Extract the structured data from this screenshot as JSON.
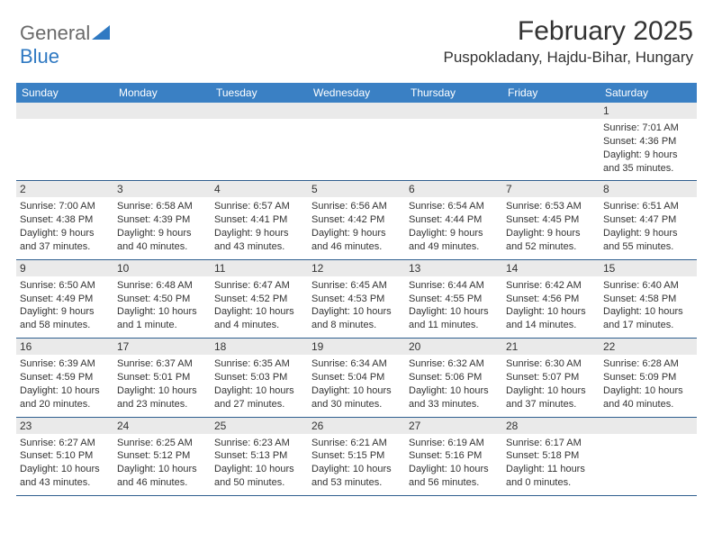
{
  "logo": {
    "part1": "General",
    "part2": "Blue"
  },
  "title": "February 2025",
  "location": "Puspokladany, Hajdu-Bihar, Hungary",
  "weekdays": [
    "Sunday",
    "Monday",
    "Tuesday",
    "Wednesday",
    "Thursday",
    "Friday",
    "Saturday"
  ],
  "colors": {
    "headerBar": "#3a80c4",
    "dayBar": "#eaeaea",
    "rowBorder": "#2f5f8f",
    "logoGray": "#6a6a6a",
    "logoBlue": "#2f79c2"
  },
  "weeks": [
    [
      null,
      null,
      null,
      null,
      null,
      null,
      {
        "n": "1",
        "sunrise": "7:01 AM",
        "sunset": "4:36 PM",
        "daylight": "9 hours and 35 minutes."
      }
    ],
    [
      {
        "n": "2",
        "sunrise": "7:00 AM",
        "sunset": "4:38 PM",
        "daylight": "9 hours and 37 minutes."
      },
      {
        "n": "3",
        "sunrise": "6:58 AM",
        "sunset": "4:39 PM",
        "daylight": "9 hours and 40 minutes."
      },
      {
        "n": "4",
        "sunrise": "6:57 AM",
        "sunset": "4:41 PM",
        "daylight": "9 hours and 43 minutes."
      },
      {
        "n": "5",
        "sunrise": "6:56 AM",
        "sunset": "4:42 PM",
        "daylight": "9 hours and 46 minutes."
      },
      {
        "n": "6",
        "sunrise": "6:54 AM",
        "sunset": "4:44 PM",
        "daylight": "9 hours and 49 minutes."
      },
      {
        "n": "7",
        "sunrise": "6:53 AM",
        "sunset": "4:45 PM",
        "daylight": "9 hours and 52 minutes."
      },
      {
        "n": "8",
        "sunrise": "6:51 AM",
        "sunset": "4:47 PM",
        "daylight": "9 hours and 55 minutes."
      }
    ],
    [
      {
        "n": "9",
        "sunrise": "6:50 AM",
        "sunset": "4:49 PM",
        "daylight": "9 hours and 58 minutes."
      },
      {
        "n": "10",
        "sunrise": "6:48 AM",
        "sunset": "4:50 PM",
        "daylight": "10 hours and 1 minute."
      },
      {
        "n": "11",
        "sunrise": "6:47 AM",
        "sunset": "4:52 PM",
        "daylight": "10 hours and 4 minutes."
      },
      {
        "n": "12",
        "sunrise": "6:45 AM",
        "sunset": "4:53 PM",
        "daylight": "10 hours and 8 minutes."
      },
      {
        "n": "13",
        "sunrise": "6:44 AM",
        "sunset": "4:55 PM",
        "daylight": "10 hours and 11 minutes."
      },
      {
        "n": "14",
        "sunrise": "6:42 AM",
        "sunset": "4:56 PM",
        "daylight": "10 hours and 14 minutes."
      },
      {
        "n": "15",
        "sunrise": "6:40 AM",
        "sunset": "4:58 PM",
        "daylight": "10 hours and 17 minutes."
      }
    ],
    [
      {
        "n": "16",
        "sunrise": "6:39 AM",
        "sunset": "4:59 PM",
        "daylight": "10 hours and 20 minutes."
      },
      {
        "n": "17",
        "sunrise": "6:37 AM",
        "sunset": "5:01 PM",
        "daylight": "10 hours and 23 minutes."
      },
      {
        "n": "18",
        "sunrise": "6:35 AM",
        "sunset": "5:03 PM",
        "daylight": "10 hours and 27 minutes."
      },
      {
        "n": "19",
        "sunrise": "6:34 AM",
        "sunset": "5:04 PM",
        "daylight": "10 hours and 30 minutes."
      },
      {
        "n": "20",
        "sunrise": "6:32 AM",
        "sunset": "5:06 PM",
        "daylight": "10 hours and 33 minutes."
      },
      {
        "n": "21",
        "sunrise": "6:30 AM",
        "sunset": "5:07 PM",
        "daylight": "10 hours and 37 minutes."
      },
      {
        "n": "22",
        "sunrise": "6:28 AM",
        "sunset": "5:09 PM",
        "daylight": "10 hours and 40 minutes."
      }
    ],
    [
      {
        "n": "23",
        "sunrise": "6:27 AM",
        "sunset": "5:10 PM",
        "daylight": "10 hours and 43 minutes."
      },
      {
        "n": "24",
        "sunrise": "6:25 AM",
        "sunset": "5:12 PM",
        "daylight": "10 hours and 46 minutes."
      },
      {
        "n": "25",
        "sunrise": "6:23 AM",
        "sunset": "5:13 PM",
        "daylight": "10 hours and 50 minutes."
      },
      {
        "n": "26",
        "sunrise": "6:21 AM",
        "sunset": "5:15 PM",
        "daylight": "10 hours and 53 minutes."
      },
      {
        "n": "27",
        "sunrise": "6:19 AM",
        "sunset": "5:16 PM",
        "daylight": "10 hours and 56 minutes."
      },
      {
        "n": "28",
        "sunrise": "6:17 AM",
        "sunset": "5:18 PM",
        "daylight": "11 hours and 0 minutes."
      },
      null
    ]
  ],
  "labels": {
    "sunrise": "Sunrise:",
    "sunset": "Sunset:",
    "daylight": "Daylight:"
  }
}
